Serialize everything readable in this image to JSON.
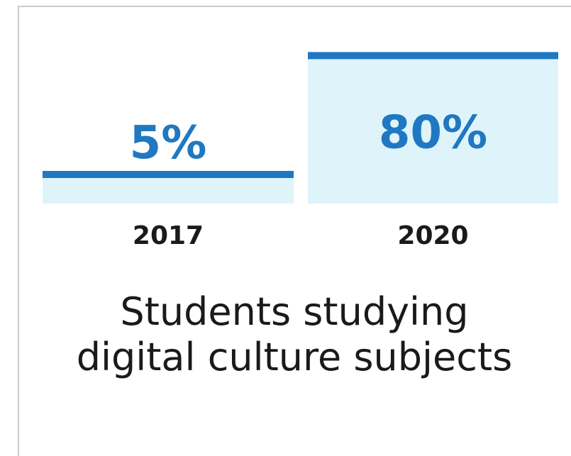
{
  "chart_data": {
    "type": "bar",
    "categories": [
      "2017",
      "2020"
    ],
    "values": [
      5,
      80
    ],
    "value_labels": [
      "5%",
      "80%"
    ],
    "unit": "%",
    "ylim": [
      0,
      100
    ],
    "bar_fill_color": "#dff3fa",
    "bar_top_color": "#1f78c1",
    "value_label_color": "#1f78c1"
  },
  "caption": {
    "line1": "Students studying",
    "line2": "digital culture subjects"
  }
}
